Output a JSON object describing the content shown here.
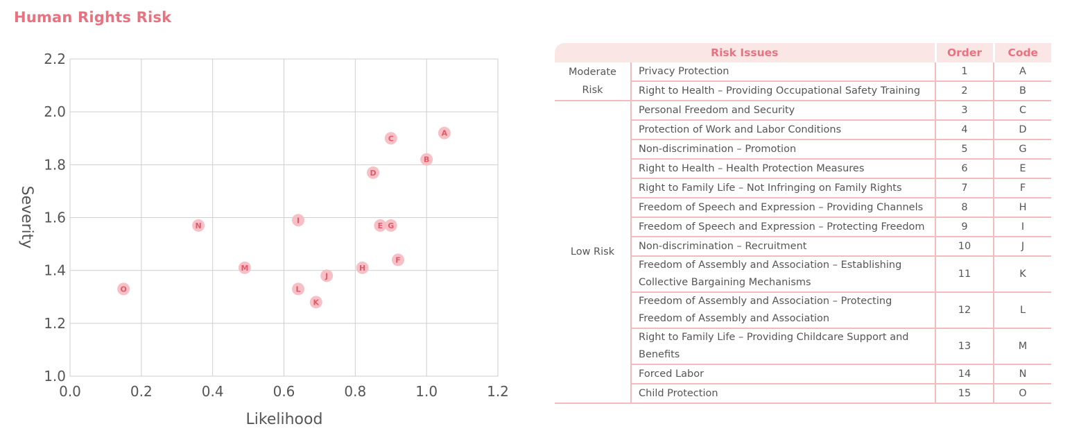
{
  "title": "Human Rights Risk",
  "colors": {
    "accent": "#e8727f",
    "point_fill": "#f6b9c0",
    "point_text": "#e05a69",
    "grid": "#cfcfcf",
    "table_line": "#f2bcbc",
    "header_bg": "#fbe6e6"
  },
  "chart_data": {
    "type": "scatter",
    "title": "",
    "xlabel": "Likelihood",
    "ylabel": "Severity",
    "xlim": [
      0.0,
      1.2
    ],
    "ylim": [
      1.0,
      2.2
    ],
    "xticks": [
      "0.0",
      "0.2",
      "0.4",
      "0.6",
      "0.8",
      "1.0",
      "1.2"
    ],
    "yticks": [
      "1.0",
      "1.2",
      "1.4",
      "1.6",
      "1.8",
      "2.0",
      "2.2"
    ],
    "grid": true,
    "points": [
      {
        "label": "A",
        "x": 1.05,
        "y": 1.92
      },
      {
        "label": "C",
        "x": 0.9,
        "y": 1.9
      },
      {
        "label": "B",
        "x": 1.0,
        "y": 1.82
      },
      {
        "label": "D",
        "x": 0.85,
        "y": 1.77
      },
      {
        "label": "I",
        "x": 0.64,
        "y": 1.59
      },
      {
        "label": "N",
        "x": 0.36,
        "y": 1.57
      },
      {
        "label": "E",
        "x": 0.87,
        "y": 1.57
      },
      {
        "label": "G",
        "x": 0.9,
        "y": 1.57
      },
      {
        "label": "F",
        "x": 0.92,
        "y": 1.44
      },
      {
        "label": "M",
        "x": 0.49,
        "y": 1.41
      },
      {
        "label": "H",
        "x": 0.82,
        "y": 1.41
      },
      {
        "label": "J",
        "x": 0.72,
        "y": 1.38
      },
      {
        "label": "O",
        "x": 0.15,
        "y": 1.33
      },
      {
        "label": "L",
        "x": 0.64,
        "y": 1.33
      },
      {
        "label": "K",
        "x": 0.69,
        "y": 1.28
      }
    ]
  },
  "table": {
    "headers": {
      "issues": "Risk Issues",
      "order": "Order",
      "code": "Code"
    },
    "groups": {
      "moderate": "Moderate Risk",
      "low": "Low Risk"
    },
    "rows": [
      {
        "issue": "Privacy Protection",
        "order": "1",
        "code": "A"
      },
      {
        "issue": "Right to Health – Providing Occupational Safety Training",
        "order": "2",
        "code": "B"
      },
      {
        "issue": "Personal Freedom and Security",
        "order": "3",
        "code": "C"
      },
      {
        "issue": "Protection of Work and Labor Conditions",
        "order": "4",
        "code": "D"
      },
      {
        "issue": "Non-discrimination – Promotion",
        "order": "5",
        "code": "G"
      },
      {
        "issue": "Right to Health – Health Protection Measures",
        "order": "6",
        "code": "E"
      },
      {
        "issue": "Right to Family Life – Not Infringing on Family Rights",
        "order": "7",
        "code": "F"
      },
      {
        "issue": "Freedom of Speech and Expression – Providing Channels",
        "order": "8",
        "code": "H"
      },
      {
        "issue": "Freedom of Speech and Expression – Protecting Freedom",
        "order": "9",
        "code": "I"
      },
      {
        "issue": "Non-discrimination – Recruitment",
        "order": "10",
        "code": "J"
      },
      {
        "issue": "Freedom of Assembly and Association – Establishing Collective Bargaining Mechanisms",
        "order": "11",
        "code": "K"
      },
      {
        "issue": "Freedom of Assembly and Association – Protecting Freedom of Assembly and Association",
        "order": "12",
        "code": "L"
      },
      {
        "issue": "Right to Family Life – Providing Childcare Support and Benefits",
        "order": "13",
        "code": "M"
      },
      {
        "issue": "Forced Labor",
        "order": "14",
        "code": "N"
      },
      {
        "issue": "Child Protection",
        "order": "15",
        "code": "O"
      }
    ]
  }
}
